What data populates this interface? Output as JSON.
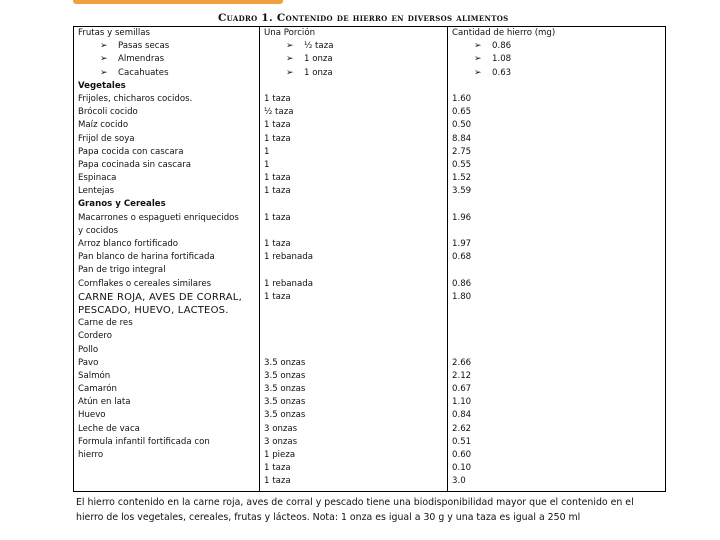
{
  "caption": "Cuadro 1. Contenido de hierro en diversos alimentos",
  "colors": {
    "accent": "#f0a040",
    "text": "#111111",
    "border": "#000000"
  },
  "header": {
    "col1": "Frutas y semillas",
    "col2": "Una Porción",
    "col3": "Cantidad de hierro (mg)"
  },
  "rows": [
    {
      "food": "Pasas secas",
      "portion": "½ taza",
      "iron": "0.86"
    },
    {
      "food": "Almendras",
      "portion": "1 onza",
      "iron": "1.08"
    },
    {
      "food": "Cacahuates",
      "portion": "1 onza",
      "iron": "0.63"
    },
    {
      "food": "Vegetales",
      "portion": "",
      "iron": ""
    },
    {
      "food": "Frijoles, chicharos cocidos.",
      "portion": "1 taza",
      "iron": "1.60"
    },
    {
      "food": "Brócoli cocido",
      "portion": "½ taza",
      "iron": "0.65"
    },
    {
      "food": "Maíz cocido",
      "portion": "1 taza",
      "iron": "0.50"
    },
    {
      "food": "Frijol de soya",
      "portion": "1 taza",
      "iron": "8.84"
    },
    {
      "food": "Papa cocida con cascara",
      "portion": "1",
      "iron": "2.75"
    },
    {
      "food": "Papa cocinada sin cascara",
      "portion": "1",
      "iron": "0.55"
    },
    {
      "food": "Espinaca",
      "portion": "1 taza",
      "iron": "1.52"
    },
    {
      "food": "Lentejas",
      "portion": "1 taza",
      "iron": "3.59"
    },
    {
      "food": "Granos y Cereales",
      "portion": "",
      "iron": ""
    },
    {
      "food": "Macarrones o espagueti enriquecidos",
      "portion": "1 taza",
      "iron": "1.96"
    },
    {
      "food": "y cocidos",
      "portion": "",
      "iron": ""
    },
    {
      "food": "Arroz blanco fortificado",
      "portion": "1 taza",
      "iron": "1.97"
    },
    {
      "food": "Pan blanco de harina fortificada",
      "portion": "1 rebanada",
      "iron": "0.68"
    },
    {
      "food": "Pan de trigo integral",
      "portion": "",
      "iron": ""
    },
    {
      "food": "Cornflakes o cereales similares",
      "portion": "1 rebanada",
      "iron": "0.86"
    },
    {
      "food": "CARNE ROJA, AVES DE CORRAL,",
      "portion": "1 taza",
      "iron": "1.80"
    },
    {
      "food": "PESCADO, HUEVO, LACTEOS.",
      "portion": "",
      "iron": ""
    },
    {
      "food": "Carne de res",
      "portion": "",
      "iron": ""
    },
    {
      "food": "Cordero",
      "portion": "",
      "iron": ""
    },
    {
      "food": "Pollo",
      "portion": "",
      "iron": ""
    },
    {
      "food": "Pavo",
      "portion": "3.5 onzas",
      "iron": "2.66"
    },
    {
      "food": "Salmón",
      "portion": "3.5 onzas",
      "iron": "2.12"
    },
    {
      "food": "Camarón",
      "portion": "3.5 onzas",
      "iron": "0.67"
    },
    {
      "food": "Atún en lata",
      "portion": "3.5 onzas",
      "iron": "1.10"
    },
    {
      "food": "Huevo",
      "portion": "3.5 onzas",
      "iron": "0.84"
    },
    {
      "food": "Leche de vaca",
      "portion": "3 onzas",
      "iron": "2.62"
    },
    {
      "food": "Formula infantil fortificada con",
      "portion": "3 onzas",
      "iron": "0.51"
    },
    {
      "food": "hierro",
      "portion": "1 pieza",
      "iron": "0.60"
    },
    {
      "food": "",
      "portion": "1 taza",
      "iron": "0.10"
    },
    {
      "food": "",
      "portion": "1 taza",
      "iron": "3.0"
    }
  ],
  "note": "El hierro contenido en la carne roja, aves de corral y pescado tiene una biodisponibilidad mayor que el contenido en el hierro de los vegetales, cereales, frutas y lácteos. Nota: 1 onza es igual a 30 g y una taza es igual a 250 ml"
}
